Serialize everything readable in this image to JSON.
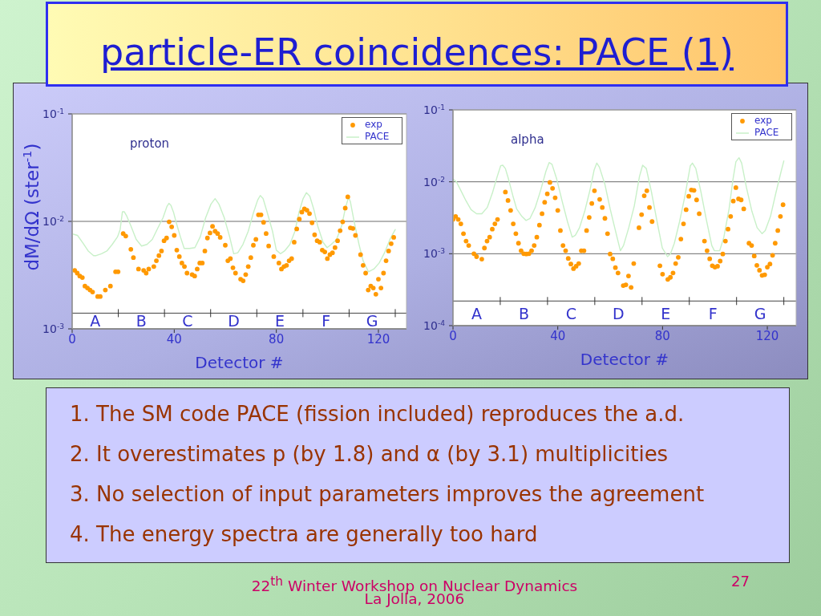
{
  "chart_data": [
    {
      "type": "scatter",
      "title": "particle-ER coincidences: PACE (1)",
      "xlabel": "Detector #",
      "ylabel": "dM/dΩ (ster$^{-1}$)",
      "annotations": [
        "proton",
        "A",
        "B",
        "C",
        "D",
        "E",
        "F",
        "G"
      ],
      "xlim": [
        0,
        131
      ],
      "ylim": [
        0.001,
        0.1
      ],
      "xticks": [
        0,
        40,
        80,
        120
      ],
      "yticks": [
        {
          "value": 0.001,
          "label": "10$^{-3}$"
        },
        {
          "value": 0.01,
          "label": "10$^{-2}$"
        },
        {
          "value": 0.1,
          "label": "10$^{-1}$"
        }
      ],
      "log": "y",
      "grid": "y",
      "legend": "top right",
      "ref_lines": [
        {
          "axis": "y",
          "value": 0.0014
        }
      ],
      "series": [
        {
          "name": "exp",
          "type": "scatter",
          "marker": "circle",
          "color": "#ff9900",
          "x": [
            1,
            2,
            3,
            4,
            5,
            6,
            7,
            8,
            10,
            11,
            13,
            15,
            17,
            18,
            20,
            21,
            23,
            24,
            26,
            28,
            29,
            30,
            32,
            33,
            34,
            35,
            36,
            37,
            38,
            39,
            40,
            41,
            42,
            43,
            44,
            45,
            47,
            48,
            49,
            50,
            51,
            52,
            53,
            54,
            55,
            56,
            57,
            58,
            60,
            61,
            62,
            63,
            64,
            66,
            67,
            68,
            69,
            70,
            71,
            72,
            73,
            74,
            75,
            76,
            77,
            79,
            81,
            82,
            83,
            84,
            85,
            86,
            87,
            88,
            89,
            90,
            91,
            92,
            93,
            94,
            95,
            96,
            97,
            98,
            99,
            100,
            101,
            102,
            103,
            104,
            105,
            106,
            107,
            108,
            109,
            110,
            111,
            113,
            114,
            115,
            116,
            117,
            118,
            119,
            120,
            121,
            122,
            123,
            124,
            125,
            126
          ],
          "values": [
            0.0035,
            0.0033,
            0.0031,
            0.003,
            0.0025,
            0.0024,
            0.0023,
            0.0022,
            0.002,
            0.002,
            0.0023,
            0.0025,
            0.0034,
            0.0034,
            0.0077,
            0.0073,
            0.0055,
            0.0046,
            0.0036,
            0.0035,
            0.0033,
            0.0036,
            0.0038,
            0.0043,
            0.0048,
            0.0053,
            0.0066,
            0.007,
            0.0099,
            0.0089,
            0.0074,
            0.0054,
            0.0047,
            0.0041,
            0.0038,
            0.0033,
            0.0032,
            0.0031,
            0.0036,
            0.0041,
            0.0041,
            0.0053,
            0.007,
            0.0078,
            0.009,
            0.0081,
            0.0077,
            0.0071,
            0.006,
            0.0043,
            0.0045,
            0.0037,
            0.0033,
            0.0029,
            0.0028,
            0.0032,
            0.0038,
            0.0046,
            0.006,
            0.0068,
            0.0115,
            0.0115,
            0.0098,
            0.0077,
            0.0059,
            0.0047,
            0.0041,
            0.0036,
            0.0038,
            0.0039,
            0.0043,
            0.0045,
            0.0064,
            0.0085,
            0.0105,
            0.0122,
            0.0131,
            0.0127,
            0.0118,
            0.0097,
            0.0075,
            0.0066,
            0.0064,
            0.0054,
            0.0052,
            0.0045,
            0.0049,
            0.0051,
            0.0057,
            0.0066,
            0.0082,
            0.0099,
            0.0133,
            0.0169,
            0.0087,
            0.0086,
            0.0074,
            0.0049,
            0.0039,
            0.0033,
            0.0023,
            0.0025,
            0.0024,
            0.0021,
            0.0029,
            0.0024,
            0.0033,
            0.0043,
            0.0053,
            0.0062,
            0.0071
          ]
        },
        {
          "name": "PACE",
          "type": "line",
          "color": "#c8f0c8",
          "x": [
            0.5,
            2.1,
            4.2,
            6.3,
            8.4,
            9.4,
            11.5,
            13.6,
            15.7,
            17.8,
            18.8,
            19.7,
            20.4,
            21.4,
            23,
            25.1,
            27.2,
            29.3,
            31.4,
            33.5,
            35.6,
            37.1,
            37.9,
            38.7,
            39.7,
            40.8,
            42.4,
            43.9,
            46,
            48.1,
            50.2,
            52.3,
            54.4,
            56,
            57.5,
            59.6,
            61.7,
            63.3,
            64.9,
            66.9,
            69,
            71.1,
            72.7,
            73.7,
            74.8,
            76.4,
            78.5,
            80,
            81.6,
            83.2,
            85.3,
            87.3,
            88.9,
            90.5,
            91.8,
            93.1,
            94.7,
            96.2,
            98.3,
            99.9,
            101.5,
            103.6,
            105.6,
            107.2,
            108.3,
            109,
            110.4,
            112.4,
            114,
            116.1,
            118.2,
            120.3,
            122.4,
            124.5,
            126.6
          ],
          "values": [
            0.0076,
            0.0074,
            0.0063,
            0.0053,
            0.0048,
            0.0048,
            0.005,
            0.0053,
            0.0061,
            0.0072,
            0.0084,
            0.0123,
            0.0123,
            0.0112,
            0.0091,
            0.0068,
            0.0059,
            0.0061,
            0.0068,
            0.0086,
            0.0108,
            0.0137,
            0.0147,
            0.0141,
            0.0122,
            0.0097,
            0.0072,
            0.0056,
            0.0056,
            0.0057,
            0.0072,
            0.0108,
            0.0145,
            0.0163,
            0.0145,
            0.0108,
            0.0072,
            0.005,
            0.0051,
            0.0061,
            0.0081,
            0.0122,
            0.0158,
            0.0174,
            0.0163,
            0.0122,
            0.0081,
            0.0054,
            0.005,
            0.0053,
            0.0061,
            0.0081,
            0.0122,
            0.0163,
            0.0185,
            0.0172,
            0.0129,
            0.0091,
            0.0064,
            0.0057,
            0.0061,
            0.0068,
            0.0091,
            0.0137,
            0.0167,
            0.0153,
            0.0102,
            0.0061,
            0.0043,
            0.0034,
            0.0036,
            0.0041,
            0.0051,
            0.0068,
            0.0084
          ]
        }
      ]
    },
    {
      "type": "scatter",
      "xlabel": "Detector #",
      "annotations": [
        "alpha",
        "A",
        "B",
        "C",
        "D",
        "E",
        "F",
        "G"
      ],
      "xlim": [
        0,
        131
      ],
      "ylim": [
        0.0001,
        0.1
      ],
      "xticks": [
        0,
        40,
        80,
        120
      ],
      "yticks": [
        {
          "value": 0.0001,
          "label": "10$^{-4}$"
        },
        {
          "value": 0.001,
          "label": "10$^{-3}$"
        },
        {
          "value": 0.01,
          "label": "10$^{-2}$"
        },
        {
          "value": 0.1,
          "label": "10$^{-1}$"
        }
      ],
      "log": "y",
      "grid": "y",
      "legend": "top right",
      "ref_lines": [
        {
          "axis": "y",
          "value": 0.00022
        }
      ],
      "series": [
        {
          "name": "exp",
          "type": "scatter",
          "marker": "circle",
          "color": "#ff9900",
          "x": [
            0,
            1,
            2,
            3,
            4,
            5,
            6,
            8,
            9,
            11,
            12,
            13,
            14,
            15,
            16,
            17,
            20,
            21,
            22,
            23,
            24,
            25,
            26,
            27,
            28,
            29,
            30,
            31,
            32,
            33,
            34,
            35,
            36,
            37,
            38,
            39,
            40,
            41,
            42,
            43,
            44,
            45,
            46,
            47,
            48,
            49,
            50,
            51,
            52,
            53,
            54,
            56,
            57,
            58,
            59,
            60,
            61,
            62,
            63,
            65,
            66,
            67,
            68,
            69,
            71,
            72,
            73,
            74,
            75,
            76,
            79,
            80,
            82,
            83,
            84,
            85,
            86,
            87,
            88,
            89,
            90,
            91,
            92,
            93,
            94,
            96,
            97,
            98,
            99,
            100,
            101,
            102,
            103,
            104,
            105,
            106,
            107,
            108,
            109,
            110,
            111,
            113,
            114,
            115,
            116,
            117,
            118,
            119,
            120,
            121,
            122,
            123,
            124,
            125,
            126
          ],
          "values": [
            0.003,
            0.0033,
            0.003,
            0.0026,
            0.0019,
            0.0015,
            0.0013,
            0.001,
            0.00091,
            0.00084,
            0.0012,
            0.0015,
            0.0017,
            0.0022,
            0.0026,
            0.003,
            0.0072,
            0.0055,
            0.004,
            0.0026,
            0.0019,
            0.0014,
            0.0011,
            0.001,
            0.00099,
            0.001,
            0.0011,
            0.0013,
            0.0017,
            0.0025,
            0.0036,
            0.0052,
            0.0068,
            0.0098,
            0.0081,
            0.006,
            0.004,
            0.0021,
            0.0013,
            0.0011,
            0.00086,
            0.00072,
            0.00062,
            0.00067,
            0.00073,
            0.0011,
            0.0011,
            0.0021,
            0.0032,
            0.005,
            0.0075,
            0.0057,
            0.0044,
            0.0031,
            0.0019,
            0.00099,
            0.00085,
            0.00064,
            0.00054,
            0.00036,
            0.00037,
            0.00049,
            0.00034,
            0.00073,
            0.0023,
            0.0035,
            0.0064,
            0.0075,
            0.0044,
            0.0028,
            0.00068,
            0.00052,
            0.00044,
            0.00047,
            0.00054,
            0.00073,
            0.00089,
            0.0016,
            0.0026,
            0.0041,
            0.0063,
            0.0077,
            0.0076,
            0.0056,
            0.0036,
            0.0015,
            0.0011,
            0.00085,
            0.00068,
            0.00065,
            0.00067,
            0.00079,
            0.00099,
            0.0015,
            0.0022,
            0.0033,
            0.0054,
            0.0083,
            0.0058,
            0.0056,
            0.0042,
            0.0014,
            0.0013,
            0.00093,
            0.00069,
            0.00059,
            0.0005,
            0.00051,
            0.00065,
            0.00072,
            0.00095,
            0.0014,
            0.0021,
            0.0033,
            0.0048
          ]
        },
        {
          "name": "PACE",
          "type": "line",
          "color": "#c8f0c8",
          "x": [
            0,
            1.3,
            2.9,
            4.9,
            6.9,
            9,
            11,
            13.1,
            15.1,
            16.9,
            18.2,
            19,
            20,
            21.2,
            22.8,
            24.3,
            26.3,
            27.9,
            29.4,
            31.4,
            33.5,
            35.5,
            36.7,
            37.8,
            39.6,
            41.6,
            43.7,
            45.5,
            46.7,
            48.3,
            50.3,
            52.3,
            53.9,
            54.9,
            55.9,
            58,
            60,
            62,
            63.9,
            65.1,
            67.1,
            69.2,
            71.2,
            72.4,
            73.8,
            75.8,
            77.9,
            79.9,
            81.9,
            83,
            84.5,
            86.5,
            88.6,
            90.6,
            91.4,
            92.7,
            94.7,
            96.7,
            98.8,
            99.8,
            101.8,
            103.4,
            105.4,
            106.9,
            108,
            109.2,
            110.2,
            112,
            114.1,
            116.1,
            118,
            119.2,
            121.2,
            123.3,
            125.3,
            126.3
          ],
          "values": [
            0.0109,
            0.01,
            0.0077,
            0.0055,
            0.0041,
            0.0036,
            0.0036,
            0.0044,
            0.0071,
            0.0119,
            0.0167,
            0.017,
            0.0153,
            0.0109,
            0.0065,
            0.0042,
            0.0033,
            0.0029,
            0.0031,
            0.0044,
            0.0077,
            0.0141,
            0.0185,
            0.0175,
            0.0109,
            0.0055,
            0.0028,
            0.0017,
            0.0018,
            0.0023,
            0.0039,
            0.0077,
            0.0147,
            0.0182,
            0.016,
            0.0092,
            0.0042,
            0.0021,
            0.0011,
            0.0013,
            0.0023,
            0.0046,
            0.0119,
            0.017,
            0.0153,
            0.0071,
            0.0028,
            0.0012,
            0.00091,
            0.00099,
            0.0014,
            0.0028,
            0.0065,
            0.0167,
            0.0182,
            0.0153,
            0.0071,
            0.003,
            0.0013,
            0.0011,
            0.0011,
            0.0017,
            0.0042,
            0.0109,
            0.019,
            0.0216,
            0.0182,
            0.0084,
            0.0039,
            0.0023,
            0.0019,
            0.0021,
            0.0033,
            0.0071,
            0.0141,
            0.0195
          ]
        }
      ]
    },
    {
      "type": "other",
      "annotations": [
        "1. The SM code PACE (fission included) reproduces the a.d.",
        "2. It overestimates p (by 1.8) and α (by 3.1) multiplicities",
        "3. No selection of input parameters improves the agreement",
        "4. The energy spectra are generally too hard"
      ]
    },
    {
      "type": "other",
      "annotations": [
        "22$^{th}$ Winter Workshop on Nuclear Dynamics",
        "La Jolla, 2006",
        "27"
      ]
    }
  ]
}
